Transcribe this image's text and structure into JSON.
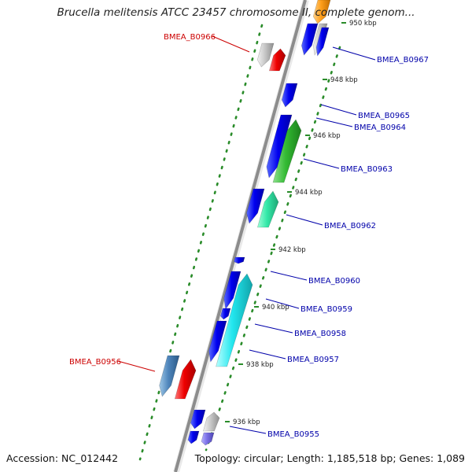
{
  "title": "Brucella melitensis ATCC 23457 chromosome II, complete genom...",
  "accession_text": "Accession: NC_012442",
  "topology_text": "Topology: circular; Length: 1,185,518 bp; Genes: 1,089",
  "colors": {
    "label_highlight": "#cc0000",
    "label_normal": "#0000aa",
    "tick_green": "#2a8c2a",
    "backbone": "#8c8c8c"
  },
  "genes": [
    {
      "name": "BMEA_B0966",
      "highlight": true
    },
    {
      "name": "BMEA_B0967",
      "highlight": false
    },
    {
      "name": "BMEA_B0965",
      "highlight": false
    },
    {
      "name": "BMEA_B0964",
      "highlight": false
    },
    {
      "name": "BMEA_B0963",
      "highlight": false
    },
    {
      "name": "BMEA_B0962",
      "highlight": false
    },
    {
      "name": "BMEA_B0960",
      "highlight": false
    },
    {
      "name": "BMEA_B0959",
      "highlight": false
    },
    {
      "name": "BMEA_B0958",
      "highlight": false
    },
    {
      "name": "BMEA_B0957",
      "highlight": false
    },
    {
      "name": "BMEA_B0956",
      "highlight": true
    },
    {
      "name": "BMEA_B0955",
      "highlight": false
    }
  ],
  "ticks": [
    "950 kbp",
    "948 kbp",
    "946 kbp",
    "944 kbp",
    "942 kbp",
    "940 kbp",
    "938 kbp",
    "936 kbp"
  ]
}
